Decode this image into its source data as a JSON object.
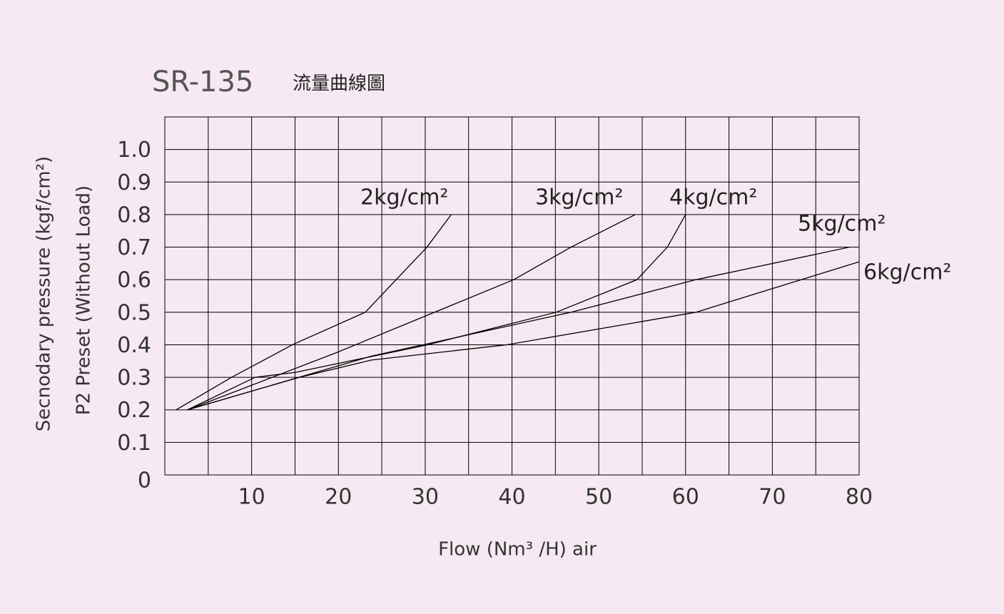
{
  "chart_data": {
    "type": "line",
    "title": "SR-135",
    "subtitle": "流量曲線圖",
    "x_label": "Flow (Nm³ /H) air",
    "y_label": "Secnodary pressure (kgf/cm²)",
    "y_label_2": "P2 Preset (Without Load)",
    "xlim": [
      0,
      80
    ],
    "xticks": [
      10,
      20,
      30,
      40,
      50,
      60,
      70,
      80
    ],
    "ylim": [
      0,
      1.1
    ],
    "yticks": [
      0,
      0.1,
      0.2,
      0.3,
      0.4,
      0.5,
      0.6,
      0.7,
      0.8,
      0.9,
      {
        "value": 1,
        "label": "1.0"
      }
    ],
    "grid": true,
    "series": [
      {
        "name": "2kg/cm²",
        "color": "#000000",
        "x": [
          1.3,
          7.7,
          14.7,
          23.1,
          30.2,
          33
        ],
        "values": [
          0.2,
          0.3,
          0.4,
          0.5,
          0.7,
          0.8
        ]
      },
      {
        "name": "3kg/cm²",
        "color": "#000000",
        "x": [
          2.6,
          19.7,
          40.2,
          46.8,
          54.2
        ],
        "values": [
          0.2,
          0.375,
          0.6,
          0.7,
          0.8
        ]
      },
      {
        "name": "4kg/cm²",
        "color": "#000000",
        "x": [
          2.6,
          10.4,
          15,
          30.3,
          45.1,
          54.4,
          57.9,
          60
        ],
        "values": [
          0.2,
          0.3,
          0.315,
          0.4,
          0.5,
          0.6,
          0.7,
          0.8
        ]
      },
      {
        "name": "5kg/cm²",
        "color": "#000000",
        "x": [
          2.6,
          23.8,
          46.8,
          61.2,
          78.9
        ],
        "values": [
          0.2,
          0.365,
          0.5,
          0.6,
          0.7
        ]
      },
      {
        "name": "6kg/cm²",
        "color": "#000000",
        "x": [
          2.6,
          15.5,
          23.8,
          39.4,
          61.2,
          80
        ],
        "values": [
          0.2,
          0.3,
          0.353,
          0.4,
          0.5,
          0.655
        ]
      }
    ]
  }
}
